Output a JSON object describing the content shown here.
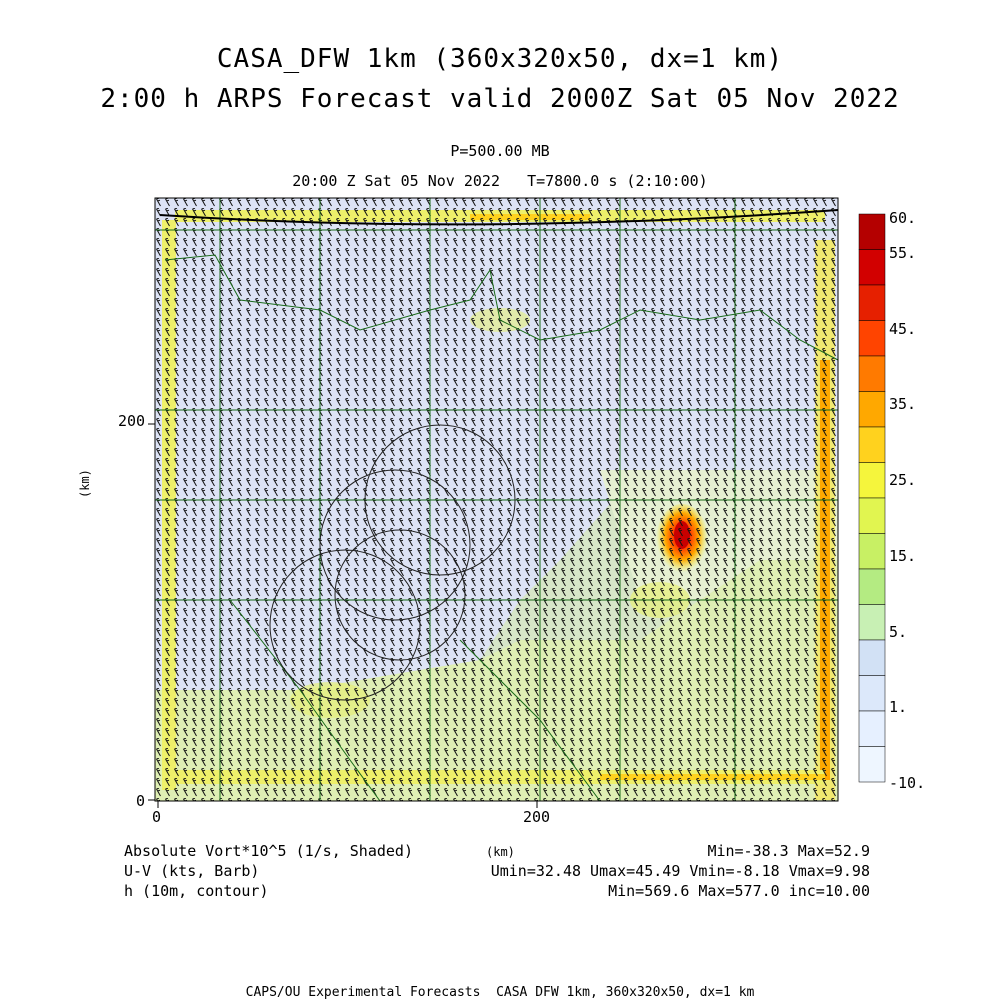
{
  "title": {
    "line1": "CASA_DFW 1km (360x320x50, dx=1 km)",
    "line2": "2:00 h ARPS Forecast valid 2000Z Sat 05 Nov 2022"
  },
  "subtitle": {
    "level": "P=500.00 MB",
    "valid_time": "20:00 Z Sat 05 Nov 2022   T=7800.0 s (2:10:00)"
  },
  "axes": {
    "y_label": "(km)",
    "x_label": "(km)",
    "x_ticks": [
      "0",
      "200"
    ],
    "y_ticks": [
      "0",
      "200"
    ]
  },
  "colorbar": {
    "labels": [
      "60.",
      "55.",
      "45.",
      "35.",
      "25.",
      "15.",
      "5.",
      "1.",
      "-10."
    ],
    "colors": [
      "#b40000",
      "#d20000",
      "#e62000",
      "#ff4400",
      "#ff7a00",
      "#ffa800",
      "#ffd21e",
      "#f5f53c",
      "#e1f550",
      "#c8f064",
      "#b4eb82",
      "#c8f0b4",
      "#d2e1f5",
      "#dce8fa",
      "#e6f0ff",
      "#eef6ff"
    ]
  },
  "legend": {
    "shaded": "Absolute Vort*10^5 (1/s, Shaded)",
    "barb": "U-V (kts, Barb)",
    "contour": "h (10m, contour)",
    "minmax_shaded": "Min=-38.3 Max=52.9",
    "minmax_wind": "Umin=32.48 Umax=45.49 Vmin=-8.18 Vmax=9.98",
    "minmax_contour": "Min=569.6 Max=577.0 inc=10.00"
  },
  "footer": "CAPS/OU Experimental Forecasts  CASA DFW 1km, 360x320x50, dx=1 km",
  "chart_data": {
    "type": "heatmap",
    "field": "Absolute Vort*10^5 (1/s)",
    "min": -38.3,
    "max": 52.9,
    "xlim": [
      0,
      360
    ],
    "ylim": [
      0,
      320
    ],
    "wind_barb_range_kts": {
      "umin": 32.48,
      "umax": 45.49,
      "vmin": -8.18,
      "vmax": 9.98
    },
    "height_contour_range": {
      "min": 569.6,
      "max": 577.0,
      "inc": 10.0
    },
    "colorbar_levels": [
      -10,
      1,
      5,
      15,
      25,
      35,
      45,
      55,
      60
    ]
  }
}
